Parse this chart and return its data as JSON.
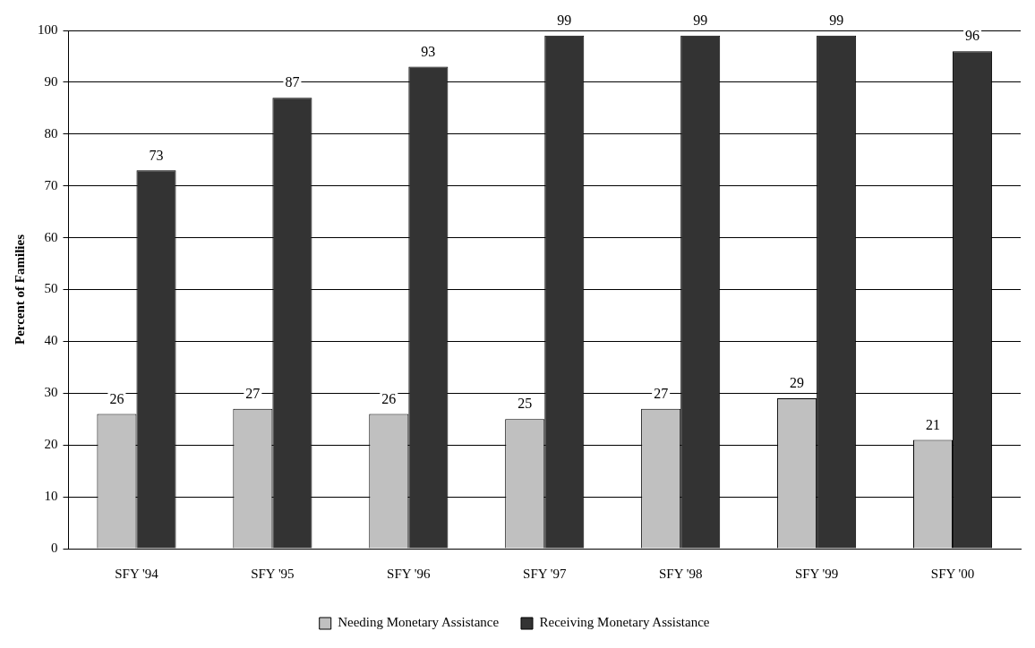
{
  "chart_data": {
    "type": "bar",
    "ylabel": "Percent of Families",
    "categories": [
      "SFY '94",
      "SFY '95",
      "SFY '96",
      "SFY '97",
      "SFY '98",
      "SFY '99",
      "SFY '00"
    ],
    "series": [
      {
        "name": "Needing Monetary Assistance",
        "color": "#c0c0c0",
        "values": [
          26,
          27,
          26,
          25,
          27,
          29,
          21
        ]
      },
      {
        "name": "Receiving Monetary Assistance",
        "color": "#333333",
        "values": [
          73,
          87,
          93,
          99,
          99,
          99,
          96
        ]
      }
    ],
    "ylim": [
      0,
      100
    ],
    "yticks": [
      0,
      10,
      20,
      30,
      40,
      50,
      60,
      70,
      80,
      90,
      100
    ],
    "grid": "y",
    "legend": "bottom",
    "data_labels": true
  }
}
